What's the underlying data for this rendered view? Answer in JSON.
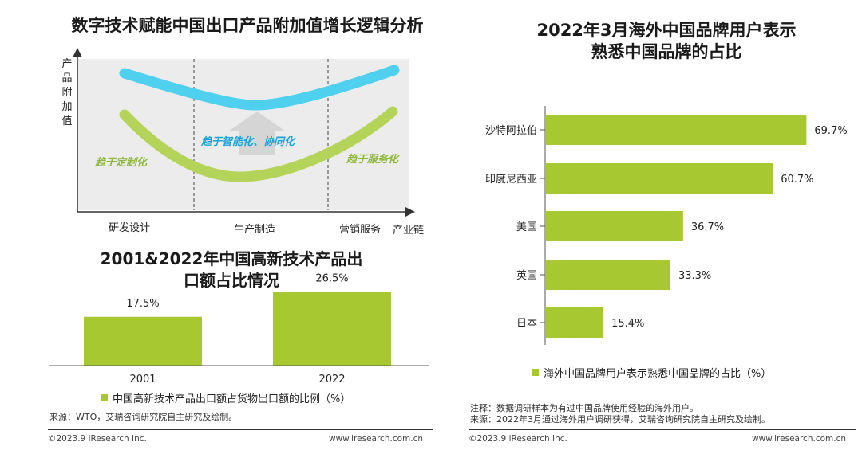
{
  "colors": {
    "bar": "#a8c832",
    "blue_curve": "#4fd0ee",
    "green_curve": "#b4d459",
    "phase_text_green": "#8db83a",
    "phase_text_blue": "#1aa3d6",
    "area_bg": "#ececec",
    "arrow": "#d5d5d5"
  },
  "diagram": {
    "title": "数字技术赋能中国出口产品附加值增长逻辑分析",
    "y_axis_label": "产品附加值",
    "x_axis_label": "产业链",
    "stages": [
      "研发设计",
      "生产制造",
      "营销服务"
    ],
    "phases": {
      "left": "趋于定制化",
      "middle": "趋于智能化、协同化",
      "right": "趋于服务化"
    }
  },
  "chart_data": [
    {
      "type": "bar",
      "title": "2001&2022年中国高新技术产品出口额占比情况",
      "title_line1": "2001&2022年中国高新技术产品出",
      "title_line2": "口额占比情况",
      "categories": [
        "2001",
        "2022"
      ],
      "values": [
        17.5,
        26.5
      ],
      "value_labels": [
        "17.5%",
        "26.5%"
      ],
      "ylim": [
        0,
        30
      ],
      "legend": "中国高新技术产品出口额占货物出口额的比例（%）",
      "source": "来源：WTO，艾瑞咨询研究院自主研究及绘制。"
    },
    {
      "type": "bar",
      "orientation": "horizontal",
      "title": "2022年3月海外中国品牌用户表示熟悉中国品牌的占比",
      "title_line1": "2022年3月海外中国品牌用户表示",
      "title_line2": "熟悉中国品牌的占比",
      "categories": [
        "沙特阿拉伯",
        "印度尼西亚",
        "美国",
        "英国",
        "日本"
      ],
      "values": [
        69.7,
        60.7,
        36.7,
        33.3,
        15.4
      ],
      "value_labels": [
        "69.7%",
        "60.7%",
        "36.7%",
        "33.3%",
        "15.4%"
      ],
      "xlim": [
        0,
        80
      ],
      "legend": "海外中国品牌用户表示熟悉中国品牌的占比（%）",
      "note": "注释：数据调研样本为有过中国品牌使用经验的海外用户。",
      "source": "来源：2022年3月通过海外用户调研获得，艾瑞咨询研究院自主研究及绘制。"
    }
  ],
  "footer": {
    "copyright_left": "©2023.9 iResearch Inc.",
    "website_left": "www.iresearch.com.cn",
    "copyright_right": "©2023.9 iResearch Inc.",
    "website_right": "www.iresearch.com.cn"
  }
}
